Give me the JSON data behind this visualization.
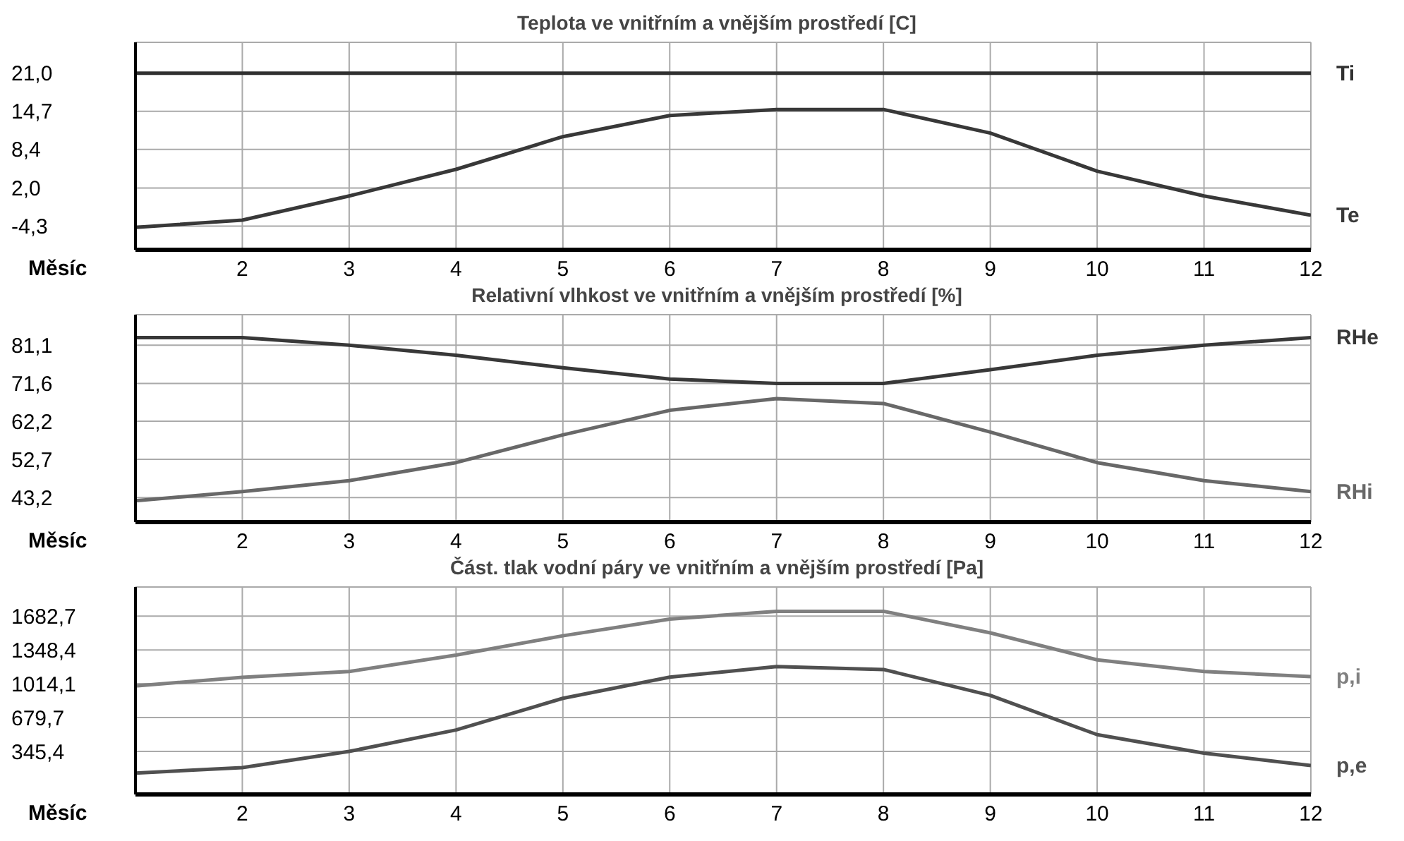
{
  "chart_data": [
    {
      "type": "line",
      "title": "Teplota ve vnitřním a vnějším prostředí [C]",
      "xlabel": "Měsíc",
      "x": [
        1,
        2,
        3,
        4,
        5,
        6,
        7,
        8,
        9,
        10,
        11,
        12
      ],
      "xlim": [
        1,
        12
      ],
      "xticks": [
        2,
        3,
        4,
        5,
        6,
        7,
        8,
        9,
        10,
        11,
        12
      ],
      "ylim": [
        -8.2,
        26.1
      ],
      "yticks": [
        {
          "value": 21,
          "label": "21,0"
        },
        {
          "value": 14.7,
          "label": "14,7"
        },
        {
          "value": 8.4,
          "label": "8,4"
        },
        {
          "value": 2,
          "label": "2,0"
        },
        {
          "value": -4.3,
          "label": "-4,3"
        }
      ],
      "grid": true,
      "legend": false,
      "series": [
        {
          "name": "Ti",
          "color": "#303030",
          "values": [
            21,
            21,
            21,
            21,
            21,
            21,
            21,
            21,
            21,
            21,
            21,
            21
          ]
        },
        {
          "name": "Te",
          "color": "#383838",
          "values": [
            -4.5,
            -3.3,
            0.7,
            5.1,
            10.5,
            14.0,
            15.0,
            15.0,
            11.1,
            4.8,
            0.7,
            -2.5
          ]
        }
      ]
    },
    {
      "type": "line",
      "title": "Relativní vlhkost ve vnitřním a vnějším prostředí [%]",
      "xlabel": "Měsíc",
      "x": [
        1,
        2,
        3,
        4,
        5,
        6,
        7,
        8,
        9,
        10,
        11,
        12
      ],
      "xlim": [
        1,
        12
      ],
      "xticks": [
        2,
        3,
        4,
        5,
        6,
        7,
        8,
        9,
        10,
        11,
        12
      ],
      "ylim": [
        37.1,
        88.7
      ],
      "yticks": [
        {
          "value": 81.1,
          "label": "81,1"
        },
        {
          "value": 71.6,
          "label": "71,6"
        },
        {
          "value": 62.2,
          "label": "62,2"
        },
        {
          "value": 52.7,
          "label": "52,7"
        },
        {
          "value": 43.2,
          "label": "43,2"
        }
      ],
      "grid": true,
      "legend": false,
      "series": [
        {
          "name": "RHe",
          "color": "#383838",
          "values": [
            83.0,
            83.0,
            81.1,
            78.6,
            75.5,
            72.7,
            71.6,
            71.6,
            75.0,
            78.6,
            81.1,
            83.0
          ]
        },
        {
          "name": "RHi",
          "color": "#686868",
          "values": [
            42.4,
            44.7,
            47.4,
            51.9,
            58.8,
            64.9,
            67.8,
            66.6,
            59.5,
            51.9,
            47.4,
            44.7
          ]
        }
      ]
    },
    {
      "type": "line",
      "title": "Část. tlak vodní páry ve vnitřním a vnějším prostředí [Pa]",
      "xlabel": "Měsíc",
      "x": [
        1,
        2,
        3,
        4,
        5,
        6,
        7,
        8,
        9,
        10,
        11,
        12
      ],
      "xlim": [
        1,
        12
      ],
      "xticks": [
        2,
        3,
        4,
        5,
        6,
        7,
        8,
        9,
        10,
        11,
        12
      ],
      "ylim": [
        -80,
        1970
      ],
      "yticks": [
        {
          "value": 1682.7,
          "label": "1682,7"
        },
        {
          "value": 1348.4,
          "label": "1348,4"
        },
        {
          "value": 1014.1,
          "label": "1014,1"
        },
        {
          "value": 679.7,
          "label": "679,7"
        },
        {
          "value": 345.4,
          "label": "345,4"
        }
      ],
      "grid": true,
      "legend": false,
      "series": [
        {
          "name": "p,i",
          "color": "#808080",
          "values": [
            992,
            1077,
            1135,
            1297,
            1488,
            1653,
            1730,
            1730,
            1517,
            1250,
            1135,
            1085
          ]
        },
        {
          "name": "p,e",
          "color": "#505050",
          "values": [
            131,
            185,
            345,
            557,
            870,
            1079,
            1184,
            1155,
            899,
            511,
            328,
            206
          ]
        }
      ]
    }
  ]
}
